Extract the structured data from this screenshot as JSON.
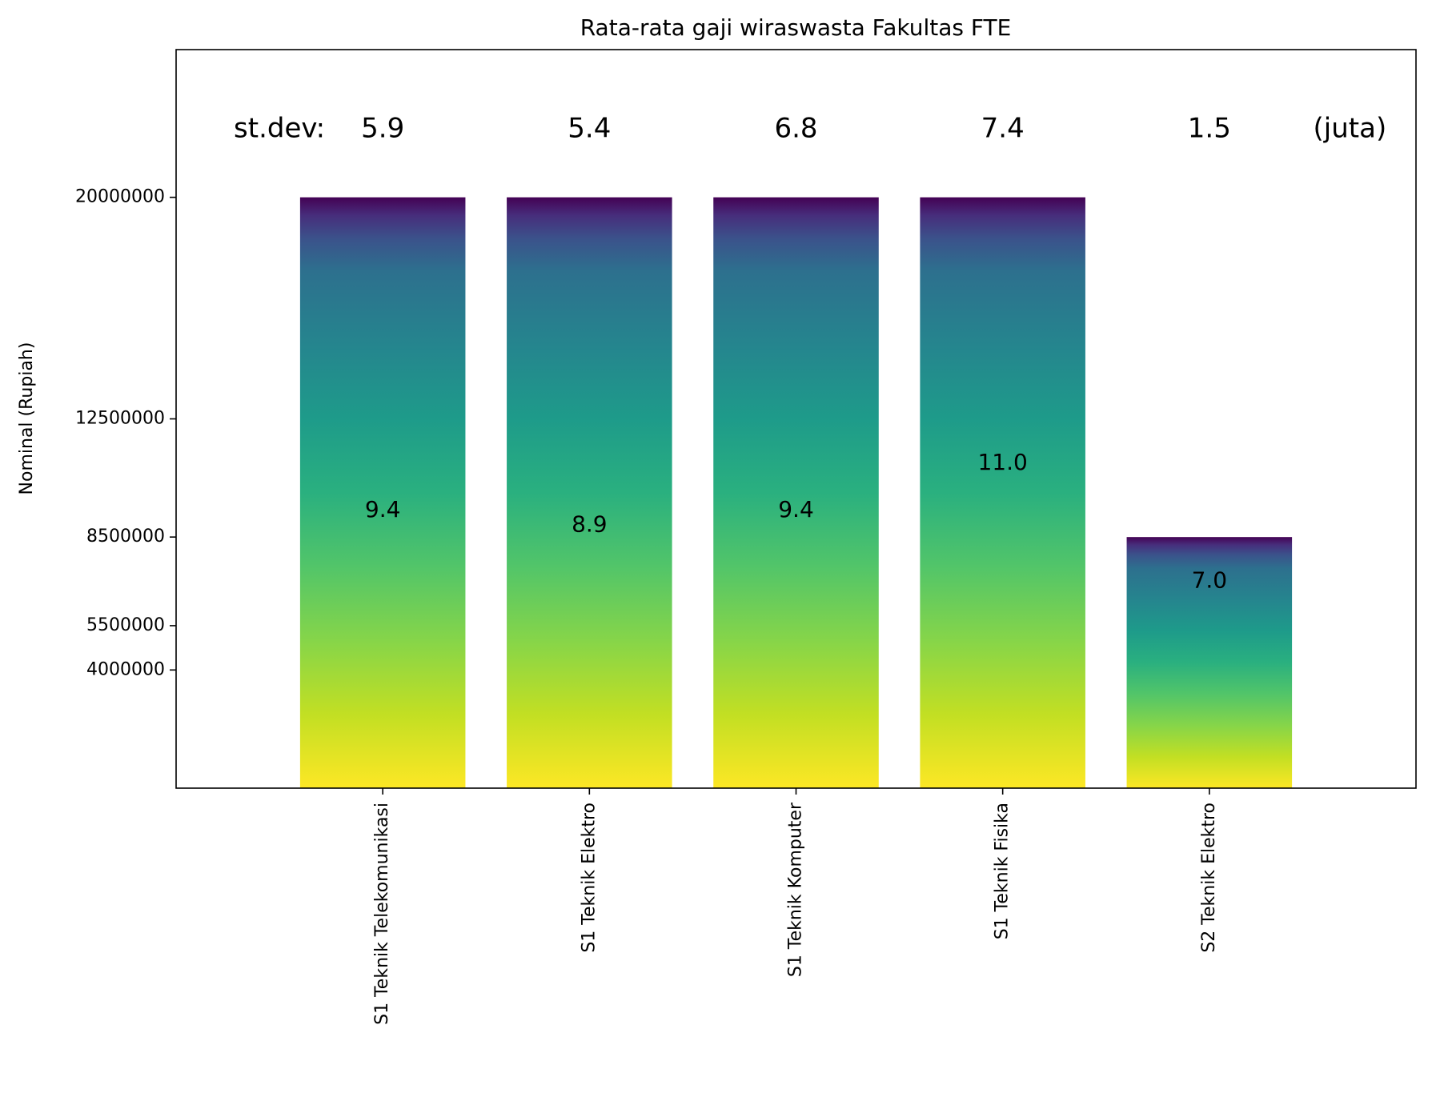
{
  "chart_data": {
    "type": "bar",
    "title": "Rata-rata gaji wiraswasta Fakultas FTE",
    "xlabel": "",
    "ylabel": "Nominal (Rupiah)",
    "categories": [
      "S1 Teknik Telekomunikasi",
      "S1 Teknik Elektro",
      "S1 Teknik Komputer",
      "S1 Teknik Fisika",
      "S2 Teknik Elektro"
    ],
    "values": [
      20000000,
      20000000,
      20000000,
      20000000,
      8500000
    ],
    "bar_labels": [
      "9.4",
      "8.9",
      "9.4",
      "11.0",
      "7.0"
    ],
    "bar_label_values": [
      9400000,
      8900000,
      9400000,
      11000000,
      7000000
    ],
    "stdev_prefix": "st.dev:",
    "stdev_values": [
      "5.9",
      "5.4",
      "6.8",
      "7.4",
      "1.5"
    ],
    "stdev_suffix": "(juta)",
    "yticks": [
      4000000,
      5500000,
      8500000,
      12500000,
      20000000
    ],
    "ytick_labels": [
      "4000000",
      "5500000",
      "8500000",
      "12500000",
      "20000000"
    ],
    "ylim": [
      0,
      25000000
    ],
    "colormap": "viridis",
    "grid": false,
    "legend": "none"
  }
}
